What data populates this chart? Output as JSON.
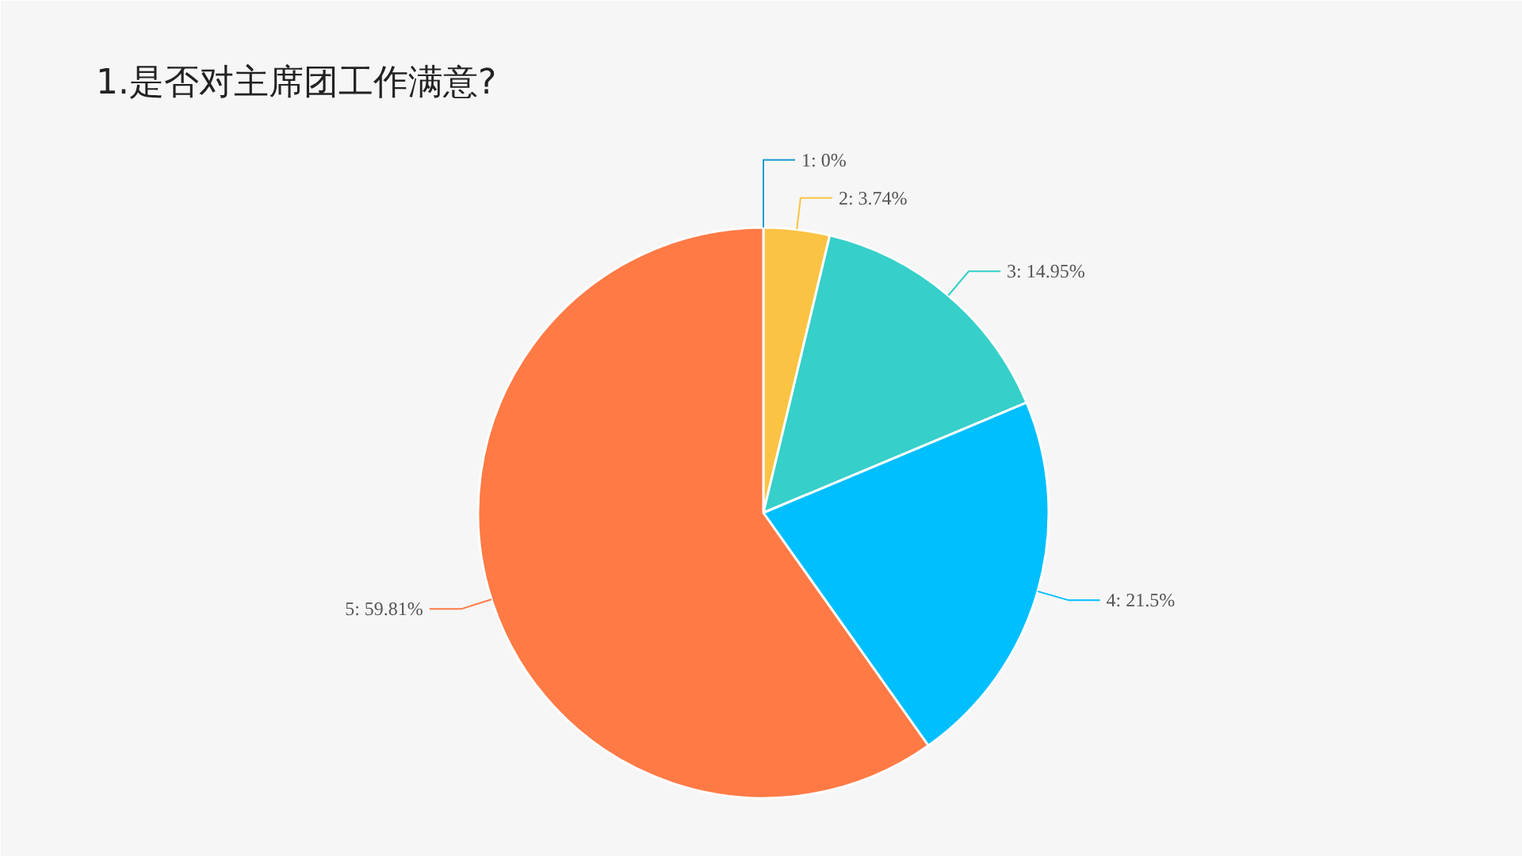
{
  "chart_data": {
    "type": "pie",
    "title": "1.是否对主席团工作满意?",
    "categories": [
      "1",
      "2",
      "3",
      "4",
      "5"
    ],
    "values": [
      0,
      3.74,
      14.95,
      21.5,
      59.81
    ],
    "colors": [
      "#1f9bd1",
      "#fbc343",
      "#36cfc9",
      "#00bfff",
      "#ff7a45"
    ],
    "value_labels": [
      ": 0%",
      ": 3.74%",
      ": 14.95%",
      ": 21.5%",
      ": 59.81%"
    ]
  }
}
